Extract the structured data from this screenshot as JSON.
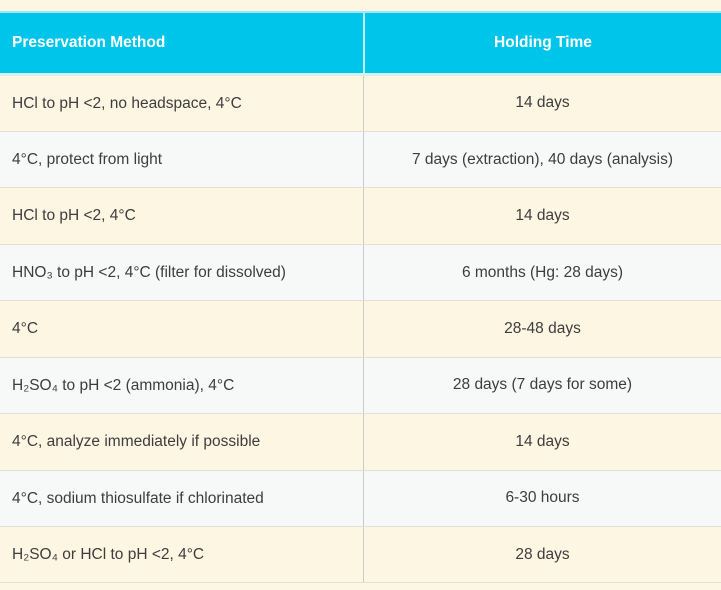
{
  "theme": {
    "header_bg": "#00c5eb",
    "header_text": "#ffffff",
    "row_bg_cream": "#fdf6e3",
    "row_bg_gray": "#f7f8f8",
    "body_text": "#3d3d3d",
    "row_border": "#e0dfd8",
    "column_divider": "#cbcbc6"
  },
  "chart_data": {
    "type": "table",
    "title": "",
    "columns": [
      "Preservation Method",
      "Holding Time"
    ],
    "rows": [
      [
        "HCl to pH <2, no headspace, 4°C",
        "14 days"
      ],
      [
        "4°C, protect from light",
        "7 days (extraction), 40 days (analysis)"
      ],
      [
        "HCl to pH <2, 4°C",
        "14 days"
      ],
      [
        "HNO₃ to pH <2, 4°C (filter for dissolved)",
        "6 months (Hg: 28 days)"
      ],
      [
        "4°C",
        "28-48 days"
      ],
      [
        "H₂SO₄ to pH <2 (ammonia), 4°C",
        "28 days (7 days for some)"
      ],
      [
        "4°C, analyze immediately if possible",
        "14 days"
      ],
      [
        "4°C, sodium thiosulfate if chlorinated",
        "6-30 hours"
      ],
      [
        "H₂SO₄ or HCl to pH <2, 4°C",
        "28 days"
      ]
    ],
    "layout_hints": {
      "header_alignment": [
        "left",
        "center"
      ],
      "body_alignment": [
        "left",
        "center"
      ],
      "alternating_row_shading": true,
      "first_row_shade": "cream"
    }
  }
}
